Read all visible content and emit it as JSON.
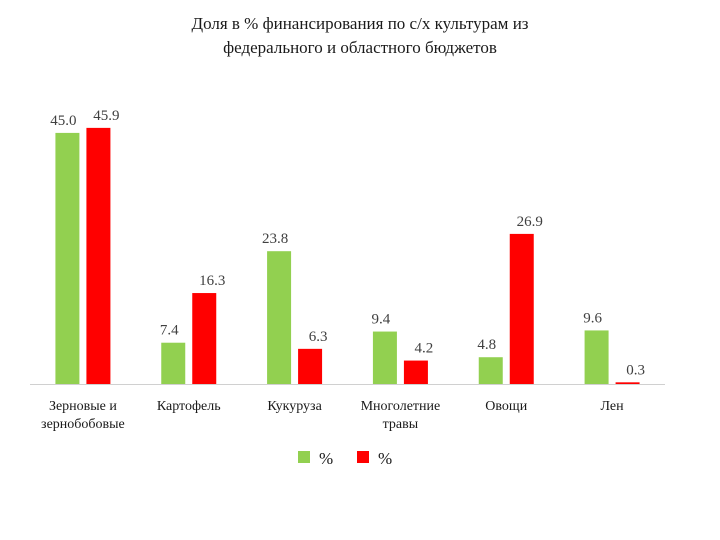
{
  "chart_data": {
    "type": "bar",
    "title_lines": [
      "Доля в % финансирования по с/х культурам из",
      "федерального и областного бюджетов"
    ],
    "categories": [
      [
        "Зерновые и",
        "зернобобовые"
      ],
      [
        "Картофель"
      ],
      [
        "Кукуруза"
      ],
      [
        "Многолетние",
        "травы"
      ],
      [
        "Овощи"
      ],
      [
        "Лен"
      ]
    ],
    "series": [
      {
        "name": "%",
        "color": "#92d050",
        "values": [
          45.0,
          7.4,
          23.8,
          9.4,
          4.8,
          9.6
        ]
      },
      {
        "name": "%",
        "color": "#ff0000",
        "values": [
          45.9,
          16.3,
          6.3,
          4.2,
          26.9,
          0.3
        ]
      }
    ],
    "value_labels": [
      [
        "45.0",
        "7.4",
        "23.8",
        "9.4",
        "4.8",
        "9.6"
      ],
      [
        "45.9",
        "16.3",
        "6.3",
        "4.2",
        "26.9",
        "0.3"
      ]
    ],
    "ylim": [
      0,
      50
    ],
    "grid": false,
    "legend_position": "bottom"
  }
}
